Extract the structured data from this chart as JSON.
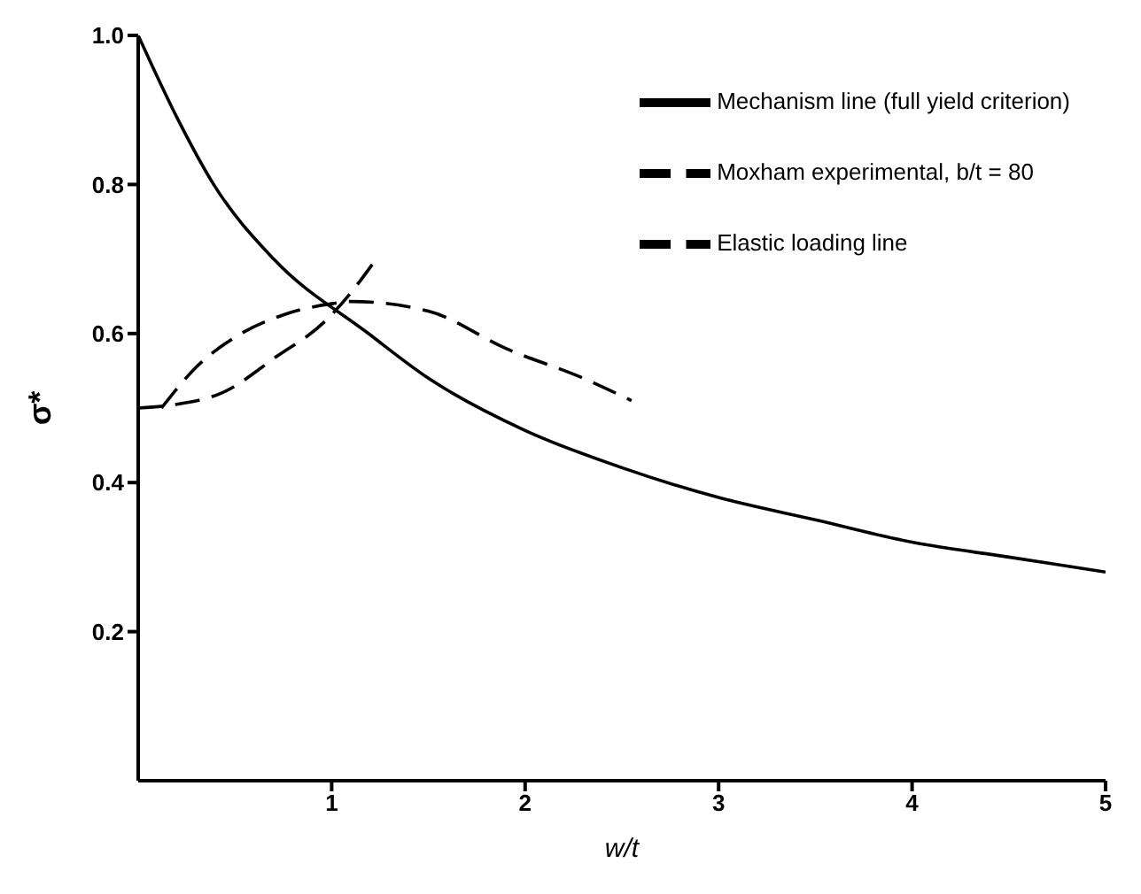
{
  "chart_data": {
    "type": "line",
    "xlabel": "w/t",
    "ylabel": "σ*",
    "xlim": [
      0,
      5
    ],
    "ylim": [
      0,
      1
    ],
    "xticks": [
      1,
      2,
      3,
      4,
      5
    ],
    "yticks": [
      0.2,
      0.4,
      0.6,
      0.8,
      {
        "value": 1,
        "label": "1.0"
      }
    ],
    "grid": false,
    "legend": "top right",
    "marker": "none",
    "series": [
      {
        "name": "Mechanism line (full yield criterion)",
        "color": "#000000",
        "line_style": "solid",
        "x": [
          0,
          0.2,
          0.39,
          0.7,
          1.19,
          1.5,
          2,
          2.5,
          3,
          3.5,
          4,
          4.5,
          5
        ],
        "values": [
          1.0,
          0.89,
          0.8,
          0.7,
          0.6,
          0.54,
          0.47,
          0.42,
          0.38,
          0.35,
          0.32,
          0.3,
          0.28
        ]
      },
      {
        "name": "Moxham experimental, b/t = 80",
        "color": "#000000",
        "line_style": "dashed",
        "x": [
          0.12,
          0.3,
          0.5,
          0.75,
          1.0,
          1.1,
          1.5,
          1.9,
          2.3,
          2.55
        ],
        "values": [
          0.5,
          0.555,
          0.595,
          0.625,
          0.64,
          0.643,
          0.63,
          0.58,
          0.54,
          0.51
        ]
      },
      {
        "name": "Elastic loading line",
        "color": "#000000",
        "line_style": "dashed",
        "x": [
          0,
          0.2,
          0.43,
          0.72,
          0.96,
          1.1,
          1.23
        ],
        "values": [
          0.5,
          0.505,
          0.52,
          0.57,
          0.615,
          0.655,
          0.7
        ]
      }
    ]
  }
}
